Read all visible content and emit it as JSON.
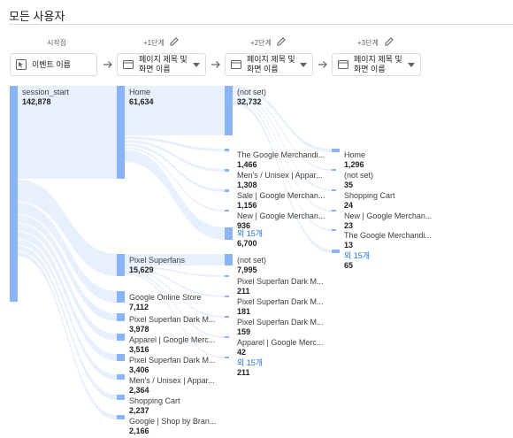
{
  "page": {
    "title": "모든 사용자"
  },
  "steps": [
    {
      "label": "시작점",
      "dimension": "이벤트 이름",
      "editable": false
    },
    {
      "label": "+1단계",
      "dimension": "페이지 제목 및 화면 이름",
      "editable": true
    },
    {
      "label": "+2단계",
      "dimension": "페이지 제목 및 화면 이름",
      "editable": true
    },
    {
      "label": "+3단계",
      "dimension": "페이지 제목 및 화면 이름",
      "editable": true
    }
  ],
  "columns": [
    {
      "nodes": [
        {
          "name": "session_start",
          "value": "142,878"
        }
      ]
    },
    {
      "nodes": [
        {
          "name": "Home",
          "value": "61,634"
        },
        {
          "name": "Pixel Superfans",
          "value": "15,629"
        },
        {
          "name": "Google Online Store",
          "value": "7,112"
        },
        {
          "name": "Pixel Superfan Dark M...",
          "value": "3,978"
        },
        {
          "name": "Apparel | Google Merc...",
          "value": "3,516"
        },
        {
          "name": "Pixel Superfan Dark M...",
          "value": "3,406"
        },
        {
          "name": "Men's / Unisex | Appar...",
          "value": "2,364"
        },
        {
          "name": "Shopping Cart",
          "value": "2,237"
        },
        {
          "name": "Google | Shop by Bran...",
          "value": "2,166"
        }
      ]
    },
    {
      "nodes": [
        {
          "name": "(not set)",
          "value": "32,732"
        },
        {
          "name": "The Google Merchandi...",
          "value": "1,466"
        },
        {
          "name": "Men's / Unisex | Appar...",
          "value": "1,308"
        },
        {
          "name": "Sale | Google Merchan...",
          "value": "1,156"
        },
        {
          "name": "New | Google Merchan...",
          "value": "936"
        },
        {
          "name": "외 15개",
          "value": "6,700",
          "more": true
        },
        {
          "name": "(not set)",
          "value": "7,995"
        },
        {
          "name": "Pixel Superfan Dark M...",
          "value": "211"
        },
        {
          "name": "Pixel Superfan Dark M...",
          "value": "181"
        },
        {
          "name": "Pixel Superfan Dark M...",
          "value": "159"
        },
        {
          "name": "Apparel | Google Merc...",
          "value": "42"
        },
        {
          "name": "외 15개",
          "value": "211",
          "more": true
        }
      ]
    },
    {
      "nodes": [
        {
          "name": "Home",
          "value": "1,296"
        },
        {
          "name": "(not set)",
          "value": "35"
        },
        {
          "name": "Shopping Cart",
          "value": "24"
        },
        {
          "name": "New | Google Merchan...",
          "value": "23"
        },
        {
          "name": "The Google Merchandi...",
          "value": "13"
        },
        {
          "name": "외 15개",
          "value": "65",
          "more": true
        }
      ]
    }
  ],
  "colors": {
    "node": "#8ab4f8",
    "flow": "#e8f0fe",
    "link": "#1a73e8"
  }
}
